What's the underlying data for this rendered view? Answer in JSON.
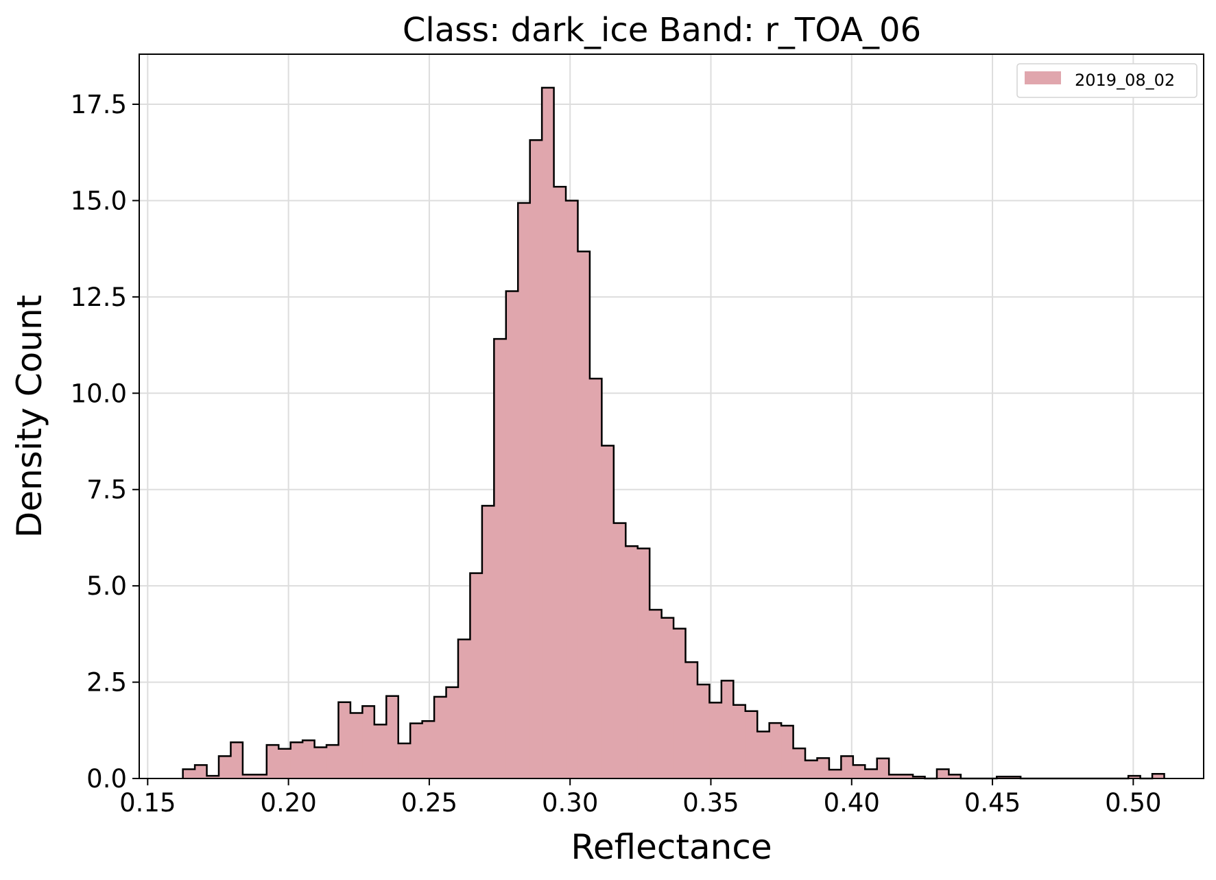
{
  "chart_data": {
    "type": "histogram",
    "title": "Class: dark_ice Band: r_TOA_06",
    "xlabel": "Reflectance",
    "ylabel": "Density Count",
    "xlim": [
      0.147,
      0.525
    ],
    "ylim": [
      0,
      18.8
    ],
    "xticks": [
      0.15,
      0.2,
      0.25,
      0.3,
      0.35,
      0.4,
      0.45,
      0.5
    ],
    "xtick_labels": [
      "0.15",
      "0.20",
      "0.25",
      "0.30",
      "0.35",
      "0.40",
      "0.45",
      "0.50"
    ],
    "yticks": [
      0,
      2.5,
      5,
      7.5,
      10,
      12.5,
      15,
      17.5
    ],
    "ytick_labels": [
      "0.0",
      "2.5",
      "5.0",
      "7.5",
      "10.0",
      "12.5",
      "15.0",
      "17.5"
    ],
    "grid": true,
    "legend_position": "top-right",
    "series": [
      {
        "name": "2019_08_02",
        "color": "#e0a6ad",
        "edge_color": "#000000",
        "bin_start": 0.1625,
        "bin_width": 0.00425,
        "values": [
          0.24,
          0.35,
          0.07,
          0.58,
          0.94,
          0.1,
          0.1,
          0.87,
          0.77,
          0.94,
          0.99,
          0.81,
          0.87,
          1.98,
          1.7,
          1.88,
          1.4,
          2.14,
          0.91,
          1.43,
          1.49,
          2.12,
          2.37,
          3.61,
          5.33,
          7.08,
          11.41,
          12.65,
          14.94,
          16.57,
          17.93,
          15.36,
          15.0,
          13.68,
          10.38,
          8.64,
          6.63,
          6.03,
          5.97,
          4.38,
          4.17,
          3.89,
          3.02,
          2.44,
          1.97,
          2.54,
          1.91,
          1.75,
          1.22,
          1.44,
          1.37,
          0.78,
          0.47,
          0.53,
          0.23,
          0.58,
          0.35,
          0.24,
          0.52,
          0.1,
          0.1,
          0.05,
          0.0,
          0.24,
          0.1,
          0.0,
          0.0,
          0.0,
          0.05,
          0.05,
          0.0,
          0.0,
          0.0,
          0.0,
          0.0,
          0.0,
          0.0,
          0.0,
          0.0,
          0.07,
          0.0,
          0.12
        ]
      }
    ]
  }
}
